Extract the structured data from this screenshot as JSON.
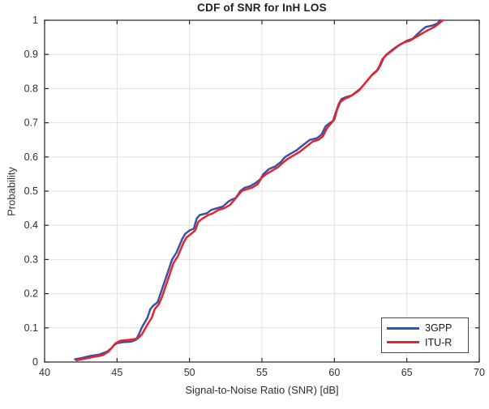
{
  "chart_data": {
    "type": "line",
    "title": "CDF of SNR for InH LOS",
    "xlabel": "Signal-to-Noise Ratio (SNR) [dB]",
    "ylabel": "Probability",
    "xlim": [
      40,
      70
    ],
    "ylim": [
      0,
      1
    ],
    "x_ticks": [
      40,
      45,
      50,
      55,
      60,
      65,
      70
    ],
    "x_tick_labels": [
      "40",
      "45",
      "50",
      "55",
      "60",
      "65",
      "70"
    ],
    "y_ticks": [
      0,
      0.1,
      0.2,
      0.3,
      0.4,
      0.5,
      0.6,
      0.7,
      0.8,
      0.9,
      1
    ],
    "y_tick_labels": [
      "0",
      "0.1",
      "0.2",
      "0.3",
      "0.4",
      "0.5",
      "0.6",
      "0.7",
      "0.8",
      "0.9",
      "1"
    ],
    "grid": true,
    "legend_position": "bottom-right",
    "colors": {
      "grid": "#e0e0e0",
      "axis": "#262626",
      "tick_label": "#303030",
      "background": "#ffffff"
    },
    "series": [
      {
        "name": "3GPP",
        "color": "#3952a3",
        "points": [
          [
            42.1,
            0.008
          ],
          [
            42.6,
            0.012
          ],
          [
            43.2,
            0.018
          ],
          [
            43.8,
            0.022
          ],
          [
            44.3,
            0.03
          ],
          [
            44.6,
            0.04
          ],
          [
            44.8,
            0.05
          ],
          [
            45.0,
            0.055
          ],
          [
            45.4,
            0.058
          ],
          [
            46.0,
            0.06
          ],
          [
            46.3,
            0.065
          ],
          [
            46.5,
            0.08
          ],
          [
            46.7,
            0.1
          ],
          [
            46.9,
            0.115
          ],
          [
            47.1,
            0.13
          ],
          [
            47.3,
            0.155
          ],
          [
            47.5,
            0.165
          ],
          [
            47.8,
            0.175
          ],
          [
            48.0,
            0.2
          ],
          [
            48.2,
            0.225
          ],
          [
            48.4,
            0.25
          ],
          [
            48.6,
            0.275
          ],
          [
            48.8,
            0.3
          ],
          [
            49.1,
            0.32
          ],
          [
            49.3,
            0.34
          ],
          [
            49.5,
            0.36
          ],
          [
            49.7,
            0.375
          ],
          [
            50.0,
            0.385
          ],
          [
            50.3,
            0.39
          ],
          [
            50.5,
            0.42
          ],
          [
            50.7,
            0.43
          ],
          [
            51.2,
            0.435
          ],
          [
            51.5,
            0.445
          ],
          [
            51.9,
            0.45
          ],
          [
            52.3,
            0.455
          ],
          [
            52.7,
            0.47
          ],
          [
            52.9,
            0.475
          ],
          [
            53.2,
            0.48
          ],
          [
            53.5,
            0.5
          ],
          [
            53.8,
            0.51
          ],
          [
            54.2,
            0.515
          ],
          [
            54.6,
            0.525
          ],
          [
            54.9,
            0.535
          ],
          [
            55.1,
            0.55
          ],
          [
            55.5,
            0.565
          ],
          [
            55.9,
            0.572
          ],
          [
            56.3,
            0.585
          ],
          [
            56.6,
            0.6
          ],
          [
            57.0,
            0.61
          ],
          [
            57.4,
            0.62
          ],
          [
            57.7,
            0.63
          ],
          [
            58.0,
            0.64
          ],
          [
            58.3,
            0.65
          ],
          [
            58.8,
            0.655
          ],
          [
            59.1,
            0.665
          ],
          [
            59.4,
            0.69
          ],
          [
            59.7,
            0.7
          ],
          [
            59.9,
            0.705
          ],
          [
            60.1,
            0.73
          ],
          [
            60.3,
            0.755
          ],
          [
            60.5,
            0.77
          ],
          [
            60.8,
            0.775
          ],
          [
            61.2,
            0.78
          ],
          [
            61.5,
            0.79
          ],
          [
            61.8,
            0.8
          ],
          [
            62.1,
            0.815
          ],
          [
            62.4,
            0.83
          ],
          [
            62.7,
            0.845
          ],
          [
            63.0,
            0.855
          ],
          [
            63.2,
            0.87
          ],
          [
            63.4,
            0.89
          ],
          [
            63.6,
            0.9
          ],
          [
            63.9,
            0.91
          ],
          [
            64.2,
            0.92
          ],
          [
            64.5,
            0.928
          ],
          [
            65.0,
            0.94
          ],
          [
            65.4,
            0.946
          ],
          [
            65.7,
            0.958
          ],
          [
            66.0,
            0.97
          ],
          [
            66.3,
            0.98
          ],
          [
            66.8,
            0.985
          ],
          [
            67.1,
            0.99
          ],
          [
            67.3,
            1.0
          ]
        ]
      },
      {
        "name": "ITU-R",
        "color": "#e8232b",
        "points": [
          [
            42.2,
            0.005
          ],
          [
            42.8,
            0.01
          ],
          [
            43.4,
            0.015
          ],
          [
            44.0,
            0.02
          ],
          [
            44.4,
            0.03
          ],
          [
            44.7,
            0.045
          ],
          [
            44.9,
            0.055
          ],
          [
            45.2,
            0.062
          ],
          [
            45.8,
            0.065
          ],
          [
            46.4,
            0.068
          ],
          [
            46.7,
            0.08
          ],
          [
            46.9,
            0.095
          ],
          [
            47.1,
            0.11
          ],
          [
            47.4,
            0.13
          ],
          [
            47.6,
            0.155
          ],
          [
            47.9,
            0.17
          ],
          [
            48.1,
            0.19
          ],
          [
            48.3,
            0.215
          ],
          [
            48.5,
            0.24
          ],
          [
            48.7,
            0.265
          ],
          [
            48.9,
            0.29
          ],
          [
            49.2,
            0.31
          ],
          [
            49.4,
            0.33
          ],
          [
            49.6,
            0.35
          ],
          [
            49.8,
            0.365
          ],
          [
            50.1,
            0.375
          ],
          [
            50.4,
            0.385
          ],
          [
            50.6,
            0.41
          ],
          [
            50.9,
            0.42
          ],
          [
            51.3,
            0.43
          ],
          [
            51.6,
            0.435
          ],
          [
            52.0,
            0.445
          ],
          [
            52.4,
            0.45
          ],
          [
            52.8,
            0.46
          ],
          [
            53.0,
            0.47
          ],
          [
            53.3,
            0.485
          ],
          [
            53.6,
            0.5
          ],
          [
            53.9,
            0.505
          ],
          [
            54.3,
            0.51
          ],
          [
            54.7,
            0.52
          ],
          [
            55.0,
            0.54
          ],
          [
            55.3,
            0.55
          ],
          [
            55.7,
            0.56
          ],
          [
            56.1,
            0.57
          ],
          [
            56.5,
            0.585
          ],
          [
            56.8,
            0.595
          ],
          [
            57.2,
            0.605
          ],
          [
            57.6,
            0.615
          ],
          [
            57.9,
            0.625
          ],
          [
            58.2,
            0.635
          ],
          [
            58.5,
            0.645
          ],
          [
            58.9,
            0.65
          ],
          [
            59.2,
            0.66
          ],
          [
            59.5,
            0.685
          ],
          [
            59.8,
            0.7
          ],
          [
            60.0,
            0.71
          ],
          [
            60.2,
            0.74
          ],
          [
            60.4,
            0.76
          ],
          [
            60.7,
            0.77
          ],
          [
            61.0,
            0.775
          ],
          [
            61.4,
            0.785
          ],
          [
            61.7,
            0.795
          ],
          [
            62.0,
            0.81
          ],
          [
            62.3,
            0.825
          ],
          [
            62.6,
            0.84
          ],
          [
            62.9,
            0.85
          ],
          [
            63.1,
            0.865
          ],
          [
            63.3,
            0.885
          ],
          [
            63.5,
            0.895
          ],
          [
            63.8,
            0.905
          ],
          [
            64.1,
            0.915
          ],
          [
            64.4,
            0.925
          ],
          [
            64.8,
            0.935
          ],
          [
            65.2,
            0.94
          ],
          [
            65.6,
            0.95
          ],
          [
            66.0,
            0.96
          ],
          [
            66.4,
            0.97
          ],
          [
            66.9,
            0.98
          ],
          [
            67.2,
            0.99
          ],
          [
            67.5,
            1.0
          ]
        ]
      }
    ]
  }
}
